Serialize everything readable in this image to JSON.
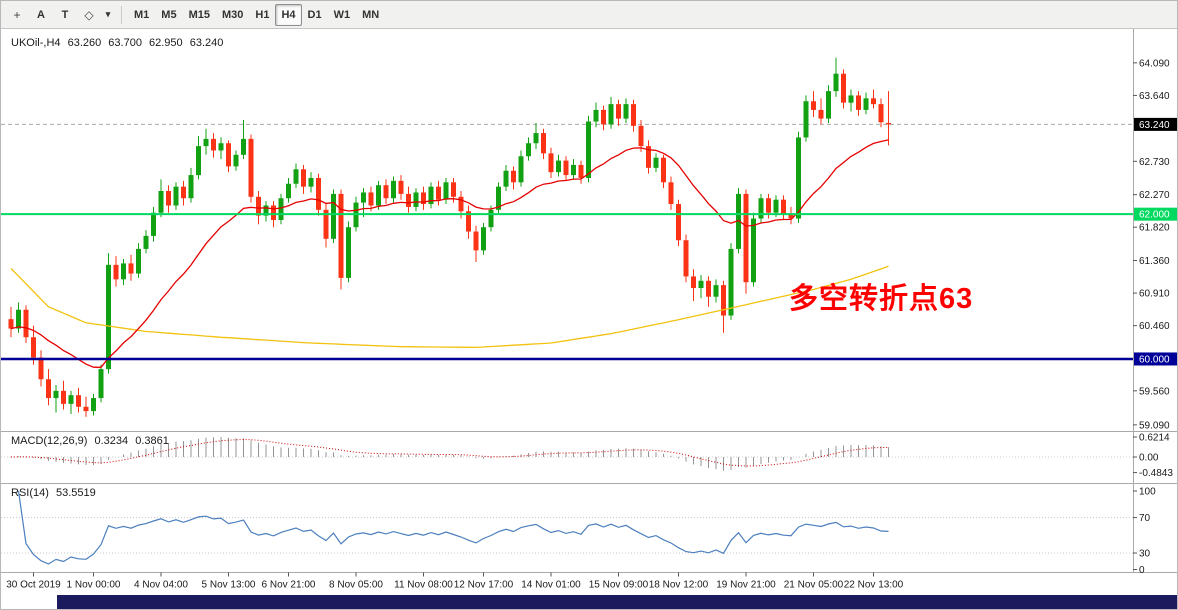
{
  "toolbar": {
    "tools": [
      {
        "id": "crosshair",
        "glyph": "+"
      },
      {
        "id": "label-a",
        "glyph": "A"
      },
      {
        "id": "text-t",
        "glyph": "T"
      },
      {
        "id": "shapes",
        "glyph": "◇"
      },
      {
        "id": "shapes-dropdown",
        "glyph": "▾"
      }
    ],
    "timeframes": [
      "M1",
      "M5",
      "M15",
      "M30",
      "H1",
      "H4",
      "D1",
      "W1",
      "MN"
    ],
    "active_timeframe": "H4"
  },
  "chart": {
    "title": {
      "symbol": "UKOil-,H4",
      "open": "63.260",
      "high": "63.700",
      "low": "62.950",
      "close": "63.240"
    },
    "annotation": {
      "text": "多空转折点63",
      "color": "#ff0000"
    },
    "indicators": {
      "macd": {
        "label": "MACD(12,26,9)",
        "value_main": "0.3234",
        "value_signal": "0.3861"
      },
      "rsi": {
        "label": "RSI(14)",
        "value": "53.5519"
      }
    }
  },
  "chart_data": {
    "type": "candlestick",
    "symbol": "UKOil-",
    "timeframe": "H4",
    "title": "UKOil-,H4 63.260 63.700 62.950 63.240",
    "colors": {
      "up": "#12a112",
      "down": "#fa3316",
      "ma_fast": "#e60000",
      "ma_slow": "#f2c20f",
      "macd_hist": "#949494",
      "macd_signal": "#cc0000",
      "rsi_line": "#4c7fbe",
      "hline_green": "#00d95f",
      "hline_blue": "#000099",
      "current_tag": "#000000"
    },
    "price_ticks": [
      "64.090",
      "63.640",
      "62.730",
      "62.270",
      "61.820",
      "61.360",
      "60.910",
      "60.460",
      "59.560",
      "59.090"
    ],
    "current_price": {
      "value": 63.24,
      "label": "63.240"
    },
    "hlines": [
      {
        "value": 62.0,
        "label": "62.000",
        "color": "#00d95f",
        "width": 2
      },
      {
        "value": 60.0,
        "label": "60.000",
        "color": "#000099",
        "width": 2.5
      }
    ],
    "time_labels": [
      {
        "text": "30 Oct 2019",
        "bar": 3
      },
      {
        "text": "1 Nov 00:00",
        "bar": 11
      },
      {
        "text": "4 Nov 04:00",
        "bar": 20
      },
      {
        "text": "5 Nov 13:00",
        "bar": 29
      },
      {
        "text": "6 Nov 21:00",
        "bar": 37
      },
      {
        "text": "8 Nov 05:00",
        "bar": 46
      },
      {
        "text": "11 Nov 08:00",
        "bar": 55
      },
      {
        "text": "12 Nov 17:00",
        "bar": 63
      },
      {
        "text": "14 Nov 01:00",
        "bar": 72
      },
      {
        "text": "15 Nov 09:00",
        "bar": 81
      },
      {
        "text": "18 Nov 12:00",
        "bar": 89
      },
      {
        "text": "19 Nov 21:00",
        "bar": 98
      },
      {
        "text": "21 Nov 05:00",
        "bar": 107
      },
      {
        "text": "22 Nov 13:00",
        "bar": 115
      }
    ],
    "ma_fast": {
      "type": "ema",
      "period": 21
    },
    "ma_slow": {
      "points": [
        [
          0,
          61.25
        ],
        [
          5,
          60.72
        ],
        [
          10,
          60.5
        ],
        [
          18,
          60.38
        ],
        [
          28,
          60.3
        ],
        [
          40,
          60.22
        ],
        [
          52,
          60.17
        ],
        [
          62,
          60.16
        ],
        [
          72,
          60.22
        ],
        [
          80,
          60.35
        ],
        [
          88,
          60.52
        ],
        [
          95,
          60.68
        ],
        [
          101,
          60.82
        ],
        [
          107,
          60.96
        ],
        [
          112,
          61.1
        ],
        [
          117,
          61.28
        ]
      ]
    },
    "indicators": {
      "macd": {
        "fast": 12,
        "slow": 26,
        "signal_period": 9,
        "axis": [
          "0.6214",
          "0.00",
          "-0.4843"
        ]
      },
      "rsi": {
        "period": 14,
        "levels": [
          70,
          30
        ],
        "axis": [
          "100",
          "70",
          "30",
          "0"
        ]
      }
    },
    "candles": [
      [
        60.55,
        60.72,
        60.3,
        60.42
      ],
      [
        60.42,
        60.78,
        60.36,
        60.68
      ],
      [
        60.68,
        60.74,
        60.22,
        60.3
      ],
      [
        60.3,
        60.46,
        59.92,
        60.02
      ],
      [
        60.02,
        60.12,
        59.62,
        59.72
      ],
      [
        59.72,
        59.86,
        59.36,
        59.46
      ],
      [
        59.46,
        59.64,
        59.26,
        59.56
      ],
      [
        59.56,
        59.7,
        59.3,
        59.38
      ],
      [
        59.38,
        59.56,
        59.24,
        59.5
      ],
      [
        59.5,
        59.6,
        59.26,
        59.34
      ],
      [
        59.34,
        59.48,
        59.2,
        59.28
      ],
      [
        59.28,
        59.52,
        59.22,
        59.46
      ],
      [
        59.46,
        59.92,
        59.4,
        59.86
      ],
      [
        59.86,
        61.46,
        59.8,
        61.3
      ],
      [
        61.3,
        61.42,
        61.0,
        61.1
      ],
      [
        61.1,
        61.38,
        61.02,
        61.32
      ],
      [
        61.32,
        61.44,
        61.08,
        61.18
      ],
      [
        61.18,
        61.6,
        61.12,
        61.52
      ],
      [
        61.52,
        61.78,
        61.46,
        61.7
      ],
      [
        61.7,
        62.1,
        61.62,
        62.02
      ],
      [
        62.02,
        62.48,
        61.96,
        62.32
      ],
      [
        62.32,
        62.4,
        62.02,
        62.12
      ],
      [
        62.12,
        62.44,
        62.06,
        62.38
      ],
      [
        62.38,
        62.46,
        62.12,
        62.22
      ],
      [
        62.22,
        62.64,
        62.16,
        62.54
      ],
      [
        62.54,
        63.08,
        62.48,
        62.94
      ],
      [
        62.94,
        63.18,
        62.82,
        63.04
      ],
      [
        63.04,
        63.12,
        62.78,
        62.88
      ],
      [
        62.88,
        63.06,
        62.76,
        62.98
      ],
      [
        62.98,
        63.02,
        62.58,
        62.66
      ],
      [
        62.66,
        62.88,
        62.6,
        62.82
      ],
      [
        62.82,
        63.3,
        62.76,
        63.04
      ],
      [
        63.04,
        63.1,
        62.16,
        62.24
      ],
      [
        62.24,
        62.32,
        61.86,
        61.98
      ],
      [
        61.98,
        62.18,
        61.9,
        62.12
      ],
      [
        62.12,
        62.18,
        61.82,
        61.92
      ],
      [
        61.92,
        62.28,
        61.86,
        62.22
      ],
      [
        62.22,
        62.5,
        62.16,
        62.42
      ],
      [
        62.42,
        62.7,
        62.36,
        62.62
      ],
      [
        62.62,
        62.68,
        62.28,
        62.38
      ],
      [
        62.38,
        62.58,
        62.3,
        62.5
      ],
      [
        62.5,
        62.56,
        61.98,
        62.06
      ],
      [
        62.06,
        62.14,
        61.54,
        61.66
      ],
      [
        61.66,
        62.34,
        61.6,
        62.28
      ],
      [
        62.28,
        62.34,
        60.96,
        61.12
      ],
      [
        61.12,
        61.9,
        61.06,
        61.82
      ],
      [
        61.82,
        62.24,
        61.76,
        62.16
      ],
      [
        62.16,
        62.36,
        61.96,
        62.3
      ],
      [
        62.3,
        62.38,
        62.04,
        62.12
      ],
      [
        62.12,
        62.46,
        62.06,
        62.4
      ],
      [
        62.4,
        62.48,
        62.14,
        62.22
      ],
      [
        62.22,
        62.52,
        62.16,
        62.46
      ],
      [
        62.46,
        62.54,
        62.2,
        62.28
      ],
      [
        62.28,
        62.38,
        62.02,
        62.1
      ],
      [
        62.1,
        62.36,
        62.04,
        62.3
      ],
      [
        62.3,
        62.38,
        62.06,
        62.14
      ],
      [
        62.14,
        62.44,
        62.08,
        62.38
      ],
      [
        62.38,
        62.46,
        62.12,
        62.2
      ],
      [
        62.2,
        62.5,
        62.14,
        62.44
      ],
      [
        62.44,
        62.5,
        62.16,
        62.24
      ],
      [
        62.24,
        62.32,
        61.94,
        62.04
      ],
      [
        62.04,
        62.12,
        61.66,
        61.76
      ],
      [
        61.76,
        61.84,
        61.34,
        61.5
      ],
      [
        61.5,
        61.88,
        61.44,
        61.82
      ],
      [
        61.82,
        62.12,
        61.76,
        62.06
      ],
      [
        62.06,
        62.44,
        62.0,
        62.38
      ],
      [
        62.38,
        62.68,
        62.32,
        62.6
      ],
      [
        62.6,
        62.66,
        62.34,
        62.44
      ],
      [
        62.44,
        62.88,
        62.38,
        62.8
      ],
      [
        62.8,
        63.06,
        62.74,
        62.98
      ],
      [
        62.98,
        63.26,
        62.9,
        63.12
      ],
      [
        63.12,
        63.18,
        62.76,
        62.84
      ],
      [
        62.84,
        62.92,
        62.5,
        62.58
      ],
      [
        62.58,
        62.82,
        62.52,
        62.74
      ],
      [
        62.74,
        62.8,
        62.46,
        62.54
      ],
      [
        62.54,
        62.76,
        62.48,
        62.68
      ],
      [
        62.68,
        62.74,
        62.42,
        62.5
      ],
      [
        62.5,
        63.36,
        62.44,
        63.28
      ],
      [
        63.28,
        63.54,
        63.2,
        63.44
      ],
      [
        63.44,
        63.5,
        63.16,
        63.24
      ],
      [
        63.24,
        63.62,
        63.18,
        63.52
      ],
      [
        63.52,
        63.58,
        63.22,
        63.32
      ],
      [
        63.32,
        63.6,
        63.26,
        63.52
      ],
      [
        63.52,
        63.58,
        63.14,
        63.22
      ],
      [
        63.22,
        63.3,
        62.86,
        62.94
      ],
      [
        62.94,
        63.02,
        62.56,
        62.64
      ],
      [
        62.64,
        62.84,
        62.58,
        62.78
      ],
      [
        62.78,
        62.82,
        62.36,
        62.44
      ],
      [
        62.44,
        62.52,
        62.06,
        62.14
      ],
      [
        62.14,
        62.2,
        61.56,
        61.64
      ],
      [
        61.64,
        61.72,
        61.06,
        61.14
      ],
      [
        61.14,
        61.24,
        60.8,
        60.98
      ],
      [
        60.98,
        61.16,
        60.84,
        61.08
      ],
      [
        61.08,
        61.14,
        60.72,
        60.86
      ],
      [
        60.86,
        61.1,
        60.78,
        61.02
      ],
      [
        61.02,
        61.08,
        60.36,
        60.6
      ],
      [
        60.6,
        61.6,
        60.54,
        61.52
      ],
      [
        61.52,
        62.36,
        61.46,
        62.28
      ],
      [
        62.28,
        62.34,
        60.9,
        61.06
      ],
      [
        61.06,
        62.02,
        61.0,
        61.94
      ],
      [
        61.94,
        62.28,
        61.88,
        62.22
      ],
      [
        62.22,
        62.28,
        61.94,
        62.02
      ],
      [
        62.02,
        62.26,
        61.96,
        62.2
      ],
      [
        62.2,
        62.26,
        61.92,
        62.0
      ],
      [
        62.0,
        62.1,
        61.86,
        61.94
      ],
      [
        61.94,
        63.14,
        61.88,
        63.06
      ],
      [
        63.06,
        63.64,
        63.0,
        63.56
      ],
      [
        63.56,
        63.7,
        63.34,
        63.44
      ],
      [
        63.44,
        63.6,
        63.24,
        63.32
      ],
      [
        63.32,
        63.78,
        63.26,
        63.7
      ],
      [
        63.7,
        64.16,
        63.62,
        63.94
      ],
      [
        63.94,
        64.0,
        63.46,
        63.54
      ],
      [
        63.54,
        63.72,
        63.42,
        63.64
      ],
      [
        63.64,
        63.7,
        63.36,
        63.44
      ],
      [
        63.44,
        63.68,
        63.38,
        63.6
      ],
      [
        63.6,
        63.72,
        63.46,
        63.52
      ],
      [
        63.52,
        63.6,
        63.2,
        63.27
      ],
      [
        63.26,
        63.7,
        62.95,
        63.24
      ]
    ]
  }
}
